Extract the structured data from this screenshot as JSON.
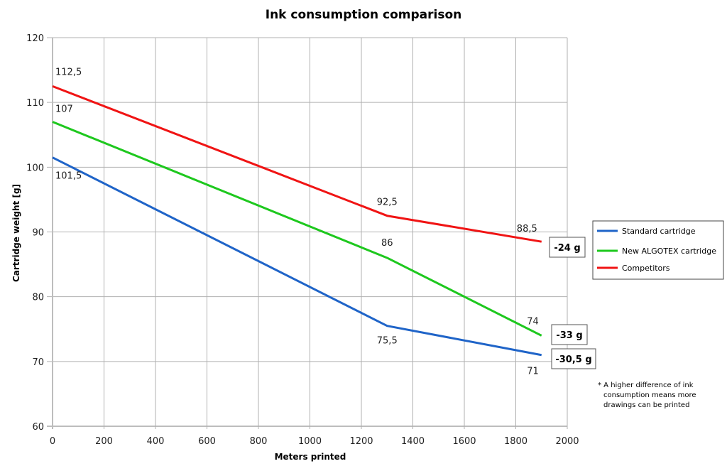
{
  "chart_data": {
    "type": "line",
    "title": "Ink consumption comparison",
    "xlabel": "Meters printed",
    "ylabel": "Cartridge weight [g]",
    "xlim": [
      0,
      2000
    ],
    "ylim": [
      60,
      120
    ],
    "xticks": [
      "0",
      "200",
      "400",
      "600",
      "800",
      "1000",
      "1200",
      "1400",
      "1600",
      "1800",
      "2000"
    ],
    "yticks": [
      "60",
      "70",
      "80",
      "90",
      "100",
      "110",
      "120"
    ],
    "grid": true,
    "legend_position": "right",
    "series": [
      {
        "name": "Standard cartridge",
        "color": "#1f64c8",
        "x": [
          0,
          1300,
          1900
        ],
        "y": [
          101.5,
          75.5,
          71
        ],
        "labels": [
          "101,5",
          "75,5",
          "71"
        ],
        "difference": "-30,5 g"
      },
      {
        "name": "New ALGOTEX cartridge",
        "color": "#1ec81e",
        "x": [
          0,
          1300,
          1900
        ],
        "y": [
          107,
          86,
          74
        ],
        "labels": [
          "107",
          "86",
          "74"
        ],
        "difference": "-33 g"
      },
      {
        "name": "Competitors",
        "color": "#f01414",
        "x": [
          0,
          1300,
          1900
        ],
        "y": [
          112.5,
          92.5,
          88.5
        ],
        "labels": [
          "112,5",
          "92,5",
          "88,5"
        ],
        "difference": "-24 g"
      }
    ]
  },
  "note": {
    "line1": "* A higher difference  of ink",
    "line2": "consumption means more",
    "line3": "drawings can be printed"
  }
}
